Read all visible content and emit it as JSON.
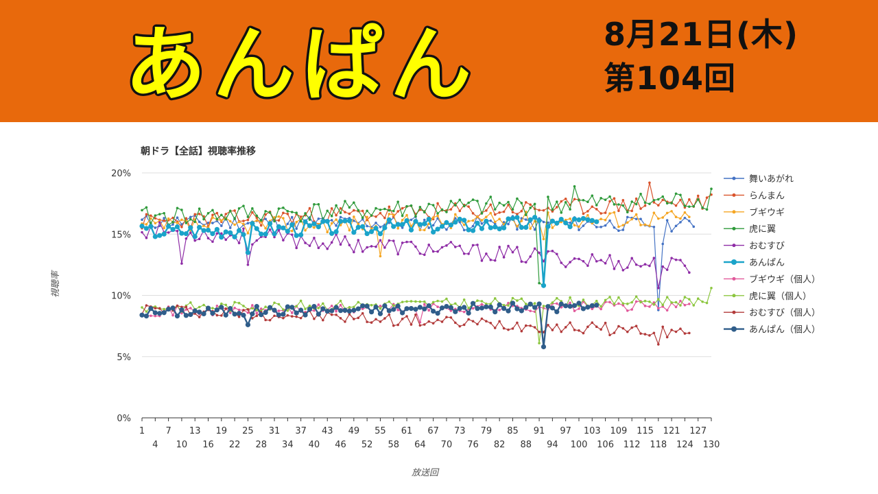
{
  "header": {
    "logo_text": "あんぱん",
    "date": "8月21日(木)",
    "episode": "第104回"
  },
  "colors": {
    "banner": "#e8690c",
    "logo_fill": "#ffff00",
    "logo_outline": "#111111"
  },
  "chart_data": {
    "type": "line",
    "title": "朝ドラ【全話】視聴率推移",
    "xlabel": "放送回",
    "ylabel": "視聴率",
    "ylim": [
      0,
      20
    ],
    "yticks": [
      "0%",
      "5%",
      "10%",
      "15%",
      "20%"
    ],
    "xlim": [
      1,
      130
    ],
    "xticks_top": [
      1,
      7,
      13,
      19,
      25,
      31,
      37,
      43,
      49,
      55,
      61,
      67,
      73,
      79,
      85,
      91,
      97,
      103,
      109,
      115,
      121,
      127
    ],
    "xticks_bottom": [
      4,
      10,
      16,
      22,
      28,
      34,
      40,
      46,
      52,
      58,
      64,
      70,
      76,
      82,
      88,
      94,
      100,
      106,
      112,
      118,
      124,
      130
    ],
    "grid": true,
    "legend_position": "right",
    "series": [
      {
        "name": "舞いあがれ",
        "color": "#4472c4",
        "n": 126,
        "base": 16.0,
        "trend": -0.2,
        "amp": 0.6,
        "seed": 11,
        "dips": [
          [
            118,
            8.8
          ],
          [
            119,
            14.2
          ]
        ]
      },
      {
        "name": "らんまん",
        "color": "#d9532b",
        "n": 130,
        "base": 16.0,
        "trend": 1.6,
        "amp": 0.7,
        "seed": 23,
        "dips": [
          [
            116,
            19.2
          ]
        ]
      },
      {
        "name": "ブギウギ",
        "color": "#f5a623",
        "n": 125,
        "base": 15.6,
        "trend": 0.8,
        "amp": 0.7,
        "seed": 37,
        "dips": [
          [
            55,
            13.2
          ],
          [
            92,
            14.6
          ]
        ]
      },
      {
        "name": "虎に翼",
        "color": "#2e9a3a",
        "n": 130,
        "base": 16.4,
        "trend": 1.4,
        "amp": 0.8,
        "seed": 41,
        "dips": [
          [
            91,
            11.0
          ],
          [
            92,
            10.8
          ],
          [
            99,
            18.9
          ],
          [
            130,
            18.7
          ]
        ]
      },
      {
        "name": "おむすび",
        "color": "#8e2ca6",
        "n": 125,
        "base": 15.4,
        "trend": -3.2,
        "amp": 0.7,
        "seed": 53,
        "dips": [
          [
            10,
            12.6
          ],
          [
            25,
            12.5
          ],
          [
            118,
            10.6
          ]
        ]
      },
      {
        "name": "あんぱん",
        "color": "#1aa3c9",
        "n": 104,
        "base": 15.2,
        "trend": 1.0,
        "amp": 0.6,
        "seed": 67,
        "dips": [
          [
            25,
            13.5
          ],
          [
            92,
            10.8
          ]
        ],
        "bold": true
      },
      {
        "name": "ブギウギ（個人）",
        "color": "#e1589a",
        "n": 125,
        "base": 8.7,
        "trend": 0.5,
        "amp": 0.4,
        "seed": 71,
        "dips": [
          [
            64,
            7.8
          ]
        ]
      },
      {
        "name": "虎に翼（個人）",
        "color": "#8cc63f",
        "n": 130,
        "base": 9.0,
        "trend": 0.6,
        "amp": 0.4,
        "seed": 83,
        "dips": [
          [
            91,
            6.1
          ],
          [
            130,
            10.6
          ]
        ]
      },
      {
        "name": "おむすび（個人）",
        "color": "#b23a3a",
        "n": 125,
        "base": 8.9,
        "trend": -2.0,
        "amp": 0.5,
        "seed": 97,
        "dips": [
          [
            118,
            6.0
          ]
        ]
      },
      {
        "name": "あんぱん（個人）",
        "color": "#2f5d8a",
        "n": 104,
        "base": 8.6,
        "trend": 0.6,
        "amp": 0.4,
        "seed": 101,
        "dips": [
          [
            25,
            7.6
          ],
          [
            92,
            5.8
          ]
        ],
        "bold": true
      }
    ]
  }
}
